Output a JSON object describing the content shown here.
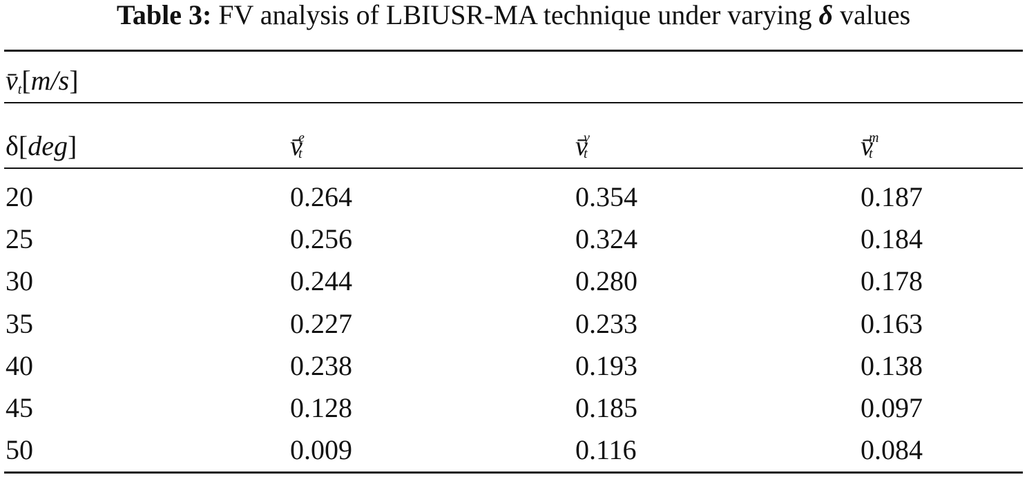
{
  "table": {
    "caption": {
      "label": "Table 3:",
      "text": "FV analysis of LBIUSR-MA technique under varying",
      "symbol": "δ",
      "tail": "values"
    },
    "group_header": {
      "symbol": "v̄",
      "subscript": "t",
      "open": "[",
      "unit": "m/s",
      "close": "]"
    },
    "columns": [
      {
        "symbol": "δ",
        "open": "[",
        "unit": "deg",
        "close": "]"
      },
      {
        "symbol": "v̄",
        "superscript": "e",
        "subscript": "t"
      },
      {
        "symbol": "v̄",
        "superscript": "v",
        "subscript": "t"
      },
      {
        "symbol": "v̄",
        "superscript": "m",
        "subscript": "t"
      }
    ],
    "rows": [
      [
        "20",
        "0.264",
        "0.354",
        "0.187"
      ],
      [
        "25",
        "0.256",
        "0.324",
        "0.184"
      ],
      [
        "30",
        "0.244",
        "0.280",
        "0.178"
      ],
      [
        "35",
        "0.227",
        "0.233",
        "0.163"
      ],
      [
        "40",
        "0.238",
        "0.193",
        "0.138"
      ],
      [
        "45",
        "0.128",
        "0.185",
        "0.097"
      ],
      [
        "50",
        "0.009",
        "0.116",
        "0.084"
      ]
    ]
  }
}
